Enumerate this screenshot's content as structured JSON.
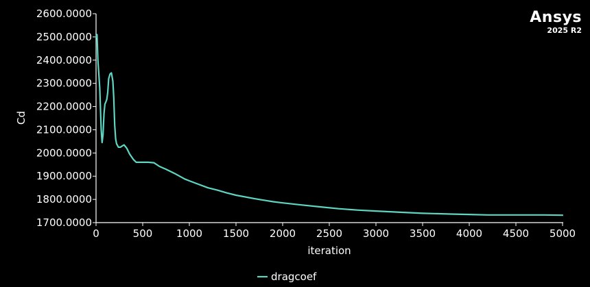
{
  "brand": {
    "name": "Ansys",
    "version": "2025 R2"
  },
  "colors": {
    "background": "#000000",
    "axis": "#ffffff",
    "series": "#5fd6c4"
  },
  "chart_data": {
    "type": "line",
    "title": "",
    "xlabel": "iteration",
    "ylabel": "Cd",
    "xlim": [
      0,
      5000
    ],
    "ylim": [
      1700,
      2600
    ],
    "xticks": [
      0,
      500,
      1000,
      1500,
      2000,
      2500,
      3000,
      3500,
      4000,
      4500,
      5000
    ],
    "yticks": [
      1700,
      1800,
      1900,
      2000,
      2100,
      2200,
      2300,
      2400,
      2500,
      2600
    ],
    "ytick_labels": [
      "1700.0000",
      "1800.0000",
      "1900.0000",
      "2000.0000",
      "2100.0000",
      "2200.0000",
      "2300.0000",
      "2400.0000",
      "2500.0000",
      "2600.0000"
    ],
    "legend_position": "bottom-center",
    "series": [
      {
        "name": "dragcoef",
        "x": [
          0,
          10,
          20,
          40,
          55,
          65,
          75,
          85,
          95,
          105,
          115,
          125,
          135,
          150,
          165,
          180,
          190,
          200,
          210,
          220,
          240,
          260,
          280,
          300,
          330,
          360,
          400,
          430,
          460,
          500,
          560,
          620,
          680,
          750,
          850,
          950,
          1000,
          1100,
          1200,
          1300,
          1400,
          1500,
          1700,
          1900,
          2000,
          2200,
          2400,
          2600,
          2800,
          3000,
          3300,
          3500,
          3800,
          4000,
          4200,
          4500,
          4800,
          5000
        ],
        "y": [
          2500,
          2510,
          2400,
          2280,
          2100,
          2045,
          2080,
          2170,
          2210,
          2220,
          2230,
          2260,
          2320,
          2340,
          2345,
          2310,
          2240,
          2120,
          2060,
          2040,
          2025,
          2025,
          2030,
          2035,
          2020,
          1995,
          1972,
          1960,
          1960,
          1960,
          1960,
          1958,
          1942,
          1930,
          1910,
          1888,
          1880,
          1865,
          1850,
          1840,
          1828,
          1818,
          1803,
          1790,
          1785,
          1776,
          1768,
          1760,
          1754,
          1750,
          1744,
          1740,
          1737,
          1735,
          1733,
          1733,
          1733,
          1732
        ]
      }
    ]
  }
}
